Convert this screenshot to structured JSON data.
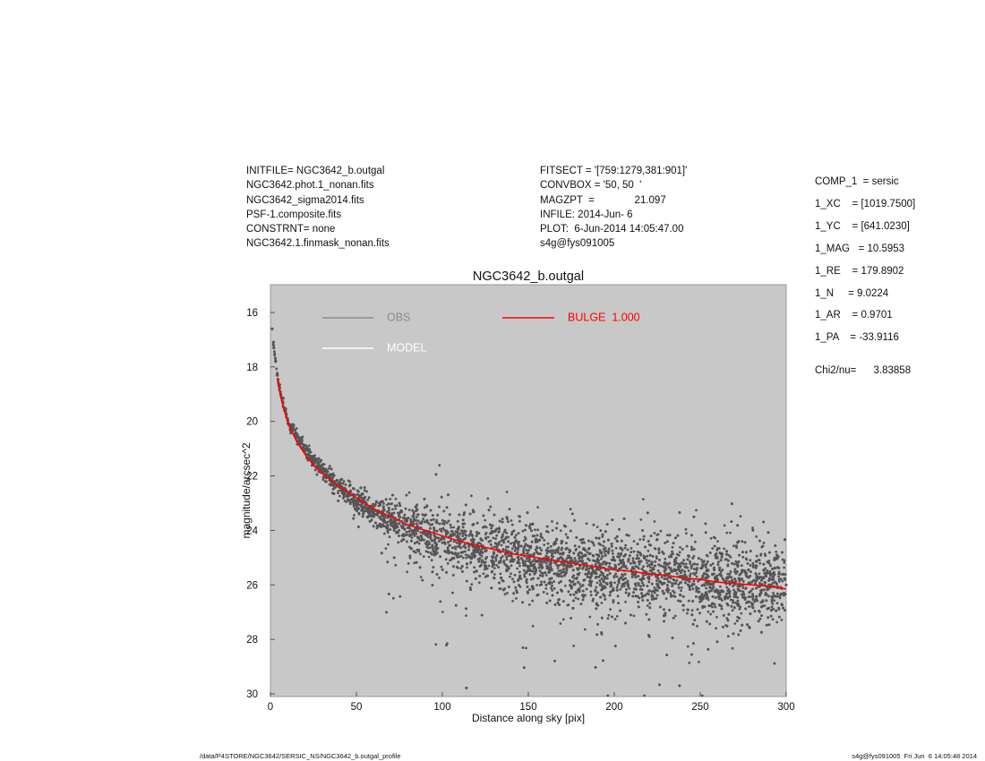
{
  "header_left": [
    "INITFILE= NGC3642_b.outgal",
    "NGC3642.phot.1_nonan.fits",
    "NGC3642_sigma2014.fits",
    "PSF-1.composite.fits",
    "CONSTRNT= none",
    "NGC3642.1.finmask_nonan.fits"
  ],
  "header_mid": [
    "FITSECT = '[759:1279,381:901]'",
    "CONVBOX = '50, 50  '",
    "MAGZPT  =              21.097",
    "INFILE: 2014-Jun- 6",
    "PLOT:  6-Jun-2014 14:05:47.00",
    "s4g@fys091005"
  ],
  "params": [
    "COMP_1  = sersic",
    "1_XC    = [1019.7500]",
    "1_YC    = [641.0230]",
    "1_MAG   = 10.5953",
    "1_RE    = 179.8902",
    "1_N     = 9.0224",
    "1_AR    = 0.9701",
    "1_PA    = -33.9116"
  ],
  "chi2": "Chi2/nu=      3.83858",
  "footer_left": "/data/P4STORE/NGC3642/SERSIC_NS/NGC3642_b.outgal_profile",
  "footer_right": "s4g@fys091005  Fri Jun  6 14:05:48 2014",
  "chart_data": {
    "type": "scatter",
    "title": "NGC3642_b.outgal",
    "xlabel": "Distance along sky [pix]",
    "ylabel": "magnitude/arcsec^2",
    "xlim": [
      0,
      300
    ],
    "ylim": [
      30,
      15
    ],
    "y_inverted": true,
    "x_ticks": [
      "0",
      "50",
      "100",
      "150",
      "200",
      "250",
      "300"
    ],
    "y_ticks": [
      "16",
      "18",
      "20",
      "22",
      "24",
      "26",
      "28",
      "30"
    ],
    "plot_background": "#c8c8c8",
    "legend": [
      {
        "label": "OBS",
        "color": "#8c8c8c"
      },
      {
        "label": "MODEL",
        "color": "#ffffff"
      },
      {
        "label": "BULGE  1.000",
        "color": "#ff0000"
      }
    ],
    "series": [
      {
        "name": "OBS",
        "color": "#555555",
        "x": [
          1,
          2,
          3,
          4,
          5,
          6,
          8,
          10,
          12,
          15,
          18,
          20,
          25,
          30,
          35,
          40,
          45,
          50,
          60,
          70,
          80,
          90,
          100,
          110,
          120,
          130,
          140,
          150,
          160,
          170,
          180,
          190,
          200,
          210,
          220,
          230,
          240,
          250,
          260,
          270,
          280,
          290,
          300
        ],
        "y": [
          16.6,
          17.3,
          17.8,
          18.3,
          18.7,
          19.0,
          19.5,
          19.9,
          20.2,
          20.5,
          20.8,
          21.0,
          21.4,
          21.8,
          22.1,
          22.4,
          22.6,
          22.9,
          23.3,
          23.6,
          23.9,
          24.1,
          24.3,
          24.5,
          24.6,
          24.8,
          24.9,
          25.0,
          25.1,
          25.2,
          25.3,
          25.4,
          25.4,
          25.5,
          25.6,
          25.6,
          25.7,
          25.8,
          25.8,
          25.9,
          25.9,
          26.0,
          26.0
        ]
      },
      {
        "name": "BULGE  1.000",
        "color": "#ff0000",
        "x": [
          4,
          5,
          6,
          8,
          10,
          12,
          15,
          20,
          25,
          30,
          40,
          50,
          60,
          70,
          80,
          90,
          100,
          110,
          120,
          130,
          140,
          150,
          160,
          170,
          180,
          190,
          200,
          210,
          220,
          230,
          240,
          250,
          260,
          270,
          280,
          290,
          300
        ],
        "y": [
          18.4,
          18.8,
          19.1,
          19.6,
          20.0,
          20.3,
          20.7,
          21.2,
          21.6,
          21.9,
          22.4,
          22.8,
          23.2,
          23.5,
          23.8,
          24.0,
          24.2,
          24.4,
          24.55,
          24.7,
          24.85,
          24.95,
          25.05,
          25.15,
          25.25,
          25.35,
          25.45,
          25.5,
          25.6,
          25.65,
          25.75,
          25.8,
          25.9,
          25.95,
          26.0,
          26.05,
          26.15
        ]
      }
    ]
  }
}
